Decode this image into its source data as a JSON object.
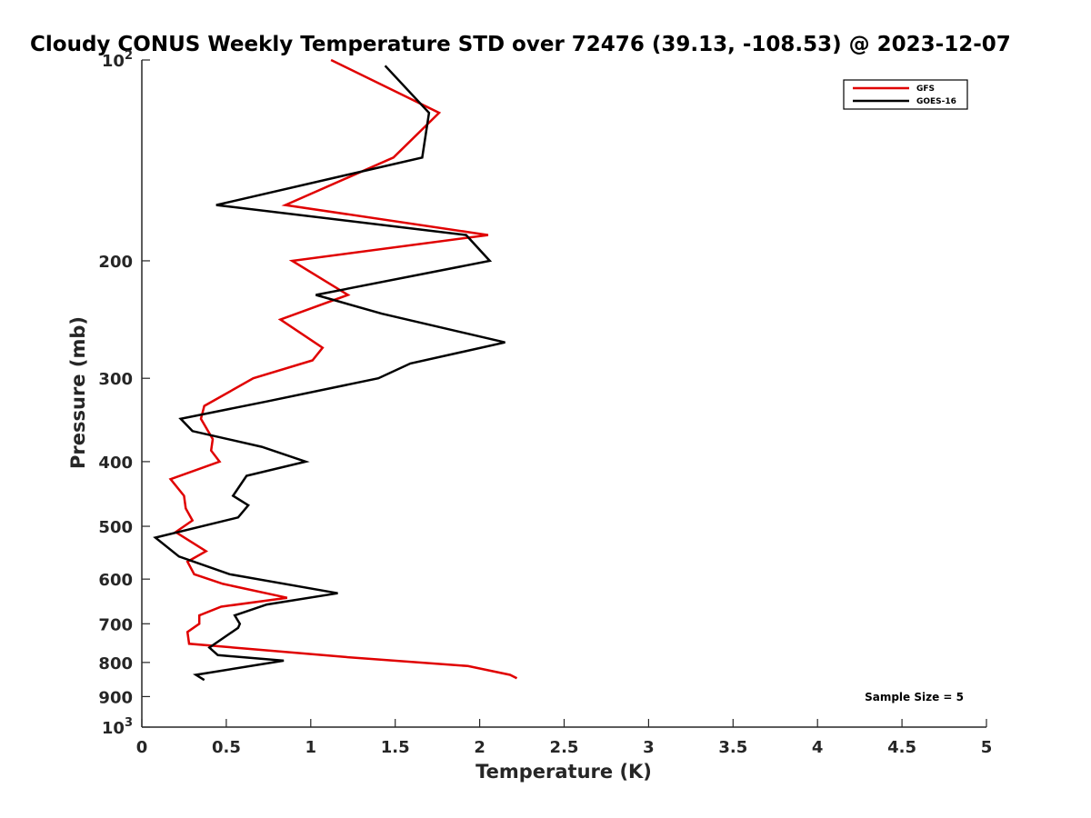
{
  "chart_data": {
    "type": "line",
    "title": "Cloudy CONUS Weekly Temperature STD over 72476 (39.13, -108.53) @ 2023-12-07",
    "xlabel": "Temperature (K)",
    "ylabel": "Pressure (mb)",
    "xlim": [
      0,
      5
    ],
    "ylim": [
      100,
      1000
    ],
    "y_scale": "log",
    "y_reversed": true,
    "x_ticks": [
      0,
      0.5,
      1,
      1.5,
      2,
      2.5,
      3,
      3.5,
      4,
      4.5,
      5
    ],
    "x_tick_labels": [
      "0",
      "0.5",
      "1",
      "1.5",
      "2",
      "2.5",
      "3",
      "3.5",
      "4",
      "4.5",
      "5"
    ],
    "y_ticks": [
      {
        "value": 100,
        "base": "10",
        "exp": "2"
      },
      {
        "value": 200,
        "label": "200"
      },
      {
        "value": 300,
        "label": "300"
      },
      {
        "value": 400,
        "label": "400"
      },
      {
        "value": 500,
        "label": "500"
      },
      {
        "value": 600,
        "label": "600"
      },
      {
        "value": 700,
        "label": "700"
      },
      {
        "value": 800,
        "label": "800"
      },
      {
        "value": 900,
        "label": "900"
      },
      {
        "value": 1000,
        "base": "10",
        "exp": "3"
      }
    ],
    "legend": {
      "position": "top-right"
    },
    "grid": false,
    "annotation": "Sample Size = 5",
    "series": [
      {
        "name": "GFS",
        "color": "#e00000",
        "x": [
          1.12,
          1.76,
          1.49,
          0.85,
          2.05,
          0.89,
          1.22,
          0.82,
          1.07,
          1.01,
          0.66,
          0.37,
          0.35,
          0.42,
          0.41,
          0.46,
          0.17,
          0.25,
          0.26,
          0.3,
          0.2,
          0.38,
          0.27,
          0.31,
          0.48,
          0.86,
          0.47,
          0.34,
          0.34,
          0.27,
          0.28,
          0.68,
          1.2,
          1.93,
          2.18,
          2.22
        ],
        "y": [
          100,
          120,
          140,
          165,
          183,
          200,
          225,
          245,
          270,
          282,
          300,
          330,
          345,
          370,
          385,
          400,
          425,
          450,
          470,
          490,
          510,
          545,
          565,
          590,
          610,
          640,
          660,
          680,
          700,
          720,
          750,
          765,
          785,
          810,
          835,
          845
        ]
      },
      {
        "name": "GOES-16",
        "color": "#000000",
        "x": [
          1.44,
          1.7,
          1.66,
          0.44,
          1.92,
          2.06,
          1.03,
          1.42,
          2.15,
          1.59,
          1.4,
          0.74,
          0.23,
          0.3,
          0.71,
          0.97,
          0.62,
          0.54,
          0.63,
          0.57,
          0.08,
          0.22,
          0.52,
          1.16,
          0.74,
          0.55,
          0.58,
          0.57,
          0.4,
          0.45,
          0.84,
          0.32,
          0.37
        ],
        "y": [
          102,
          120,
          140,
          165,
          183,
          200,
          225,
          240,
          265,
          285,
          300,
          325,
          345,
          360,
          380,
          400,
          420,
          450,
          465,
          485,
          520,
          555,
          590,
          630,
          655,
          680,
          700,
          710,
          760,
          780,
          795,
          835,
          850
        ]
      }
    ]
  }
}
